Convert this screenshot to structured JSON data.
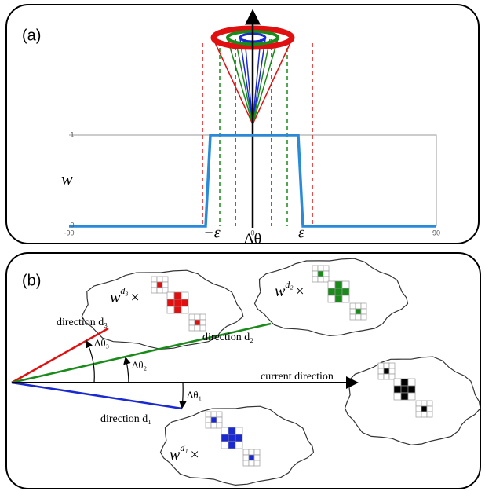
{
  "panel_a": {
    "label": "(a)",
    "x_ticks": [
      "-90",
      "0",
      "90"
    ],
    "y_ticks": [
      "1",
      "0"
    ],
    "y_label": "w",
    "x_label": "Δθ",
    "minus_eps": "−ε",
    "eps": "ε"
  },
  "panel_b": {
    "label": "(b)",
    "direction_3": "direction d₃",
    "angle_3": "Δθ₃",
    "direction_2": "direction d₂",
    "angle_2": "Δθ₂",
    "current": "current direction",
    "angle_1": "Δθ₁",
    "direction_1": "direction d₁",
    "weight_3": {
      "base": "w",
      "sup": "d₃",
      "op": "×"
    },
    "weight_2": {
      "base": "w",
      "sup": "d₂",
      "op": "×"
    },
    "weight_1": {
      "base": "w",
      "sup": "d₁",
      "op": "×"
    }
  }
}
